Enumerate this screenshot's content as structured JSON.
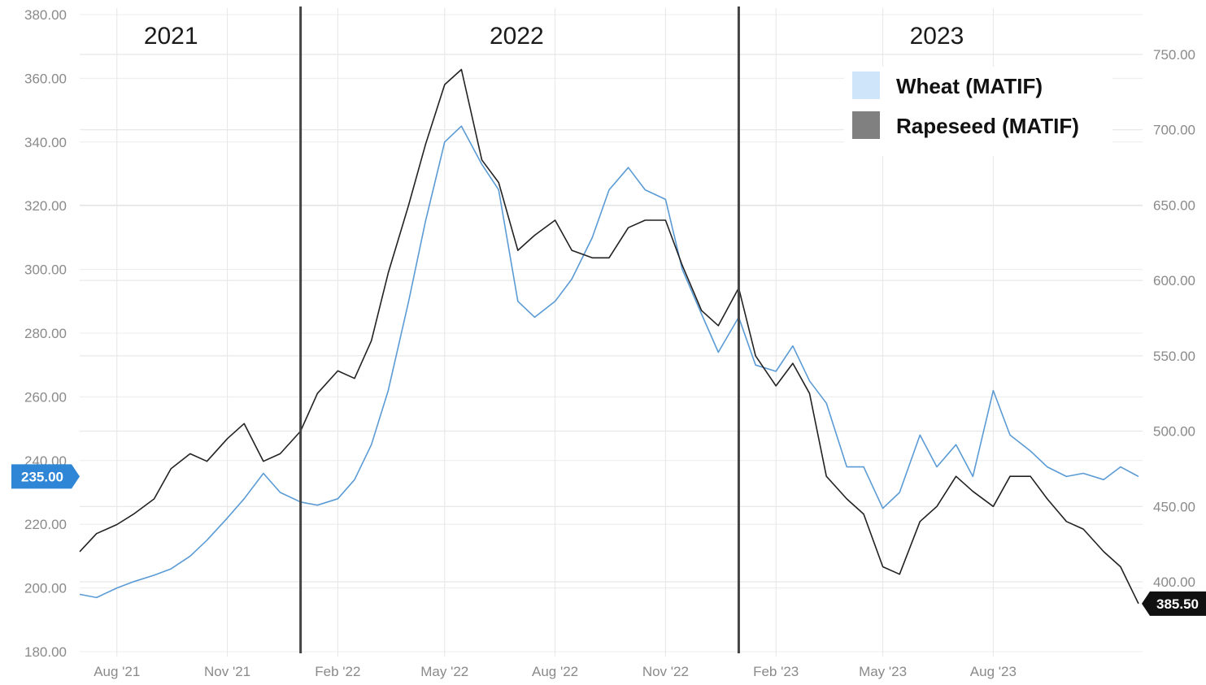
{
  "chart_data": {
    "type": "line",
    "title": "",
    "xlabel": "",
    "ylabel_left": "",
    "ylabel_right": "",
    "x_range": [
      "2021-07-01",
      "2023-11-30"
    ],
    "ylim_left": [
      180,
      380
    ],
    "ylim_right": [
      385,
      765
    ],
    "yticks_left": [
      "380.00",
      "360.00",
      "340.00",
      "320.00",
      "300.00",
      "280.00",
      "260.00",
      "240.00",
      "220.00",
      "200.00",
      "180.00"
    ],
    "yticks_right": [
      "750.00",
      "700.00",
      "650.00",
      "600.00",
      "550.00",
      "500.00",
      "450.00",
      "400.00"
    ],
    "xticks": [
      {
        "date": "2021-08-01",
        "label": "Aug '21"
      },
      {
        "date": "2021-11-01",
        "label": "Nov '21"
      },
      {
        "date": "2022-02-01",
        "label": "Feb '22"
      },
      {
        "date": "2022-05-01",
        "label": "May '22"
      },
      {
        "date": "2022-08-01",
        "label": "Aug '22"
      },
      {
        "date": "2022-11-01",
        "label": "Nov '22"
      },
      {
        "date": "2023-02-01",
        "label": "Feb '23"
      },
      {
        "date": "2023-05-01",
        "label": "May '23"
      },
      {
        "date": "2023-08-01",
        "label": "Aug '23"
      }
    ],
    "year_dividers": [
      "2022-01-01",
      "2023-01-01"
    ],
    "year_labels": [
      {
        "date": "2021-09-15",
        "label": "2021"
      },
      {
        "date": "2022-06-30",
        "label": "2022"
      },
      {
        "date": "2023-06-15",
        "label": "2023"
      }
    ],
    "grid": true,
    "legend_position": "top-right",
    "series": [
      {
        "name": "Wheat (MATIF)",
        "axis": "left",
        "color": "#5b9bd5",
        "legend_color": "#cfe6fa",
        "last_value_label": "235.00",
        "points": [
          [
            "2021-07-01",
            198
          ],
          [
            "2021-07-15",
            197
          ],
          [
            "2021-08-01",
            200
          ],
          [
            "2021-08-15",
            202
          ],
          [
            "2021-09-01",
            204
          ],
          [
            "2021-09-15",
            206
          ],
          [
            "2021-10-01",
            210
          ],
          [
            "2021-10-15",
            215
          ],
          [
            "2021-11-01",
            222
          ],
          [
            "2021-11-15",
            228
          ],
          [
            "2021-12-01",
            236
          ],
          [
            "2021-12-15",
            230
          ],
          [
            "2022-01-01",
            227
          ],
          [
            "2022-01-15",
            226
          ],
          [
            "2022-02-01",
            228
          ],
          [
            "2022-02-15",
            234
          ],
          [
            "2022-03-01",
            245
          ],
          [
            "2022-03-15",
            262
          ],
          [
            "2022-04-01",
            290
          ],
          [
            "2022-04-15",
            315
          ],
          [
            "2022-05-01",
            340
          ],
          [
            "2022-05-15",
            345
          ],
          [
            "2022-06-01",
            333
          ],
          [
            "2022-06-15",
            325
          ],
          [
            "2022-07-01",
            290
          ],
          [
            "2022-07-15",
            285
          ],
          [
            "2022-08-01",
            290
          ],
          [
            "2022-08-15",
            297
          ],
          [
            "2022-09-01",
            310
          ],
          [
            "2022-09-15",
            325
          ],
          [
            "2022-10-01",
            332
          ],
          [
            "2022-10-15",
            325
          ],
          [
            "2022-11-01",
            322
          ],
          [
            "2022-11-15",
            300
          ],
          [
            "2022-12-01",
            286
          ],
          [
            "2022-12-15",
            274
          ],
          [
            "2023-01-01",
            285
          ],
          [
            "2023-01-15",
            270
          ],
          [
            "2023-02-01",
            268
          ],
          [
            "2023-02-15",
            276
          ],
          [
            "2023-03-01",
            265
          ],
          [
            "2023-03-15",
            258
          ],
          [
            "2023-04-01",
            238
          ],
          [
            "2023-04-15",
            238
          ],
          [
            "2023-05-01",
            225
          ],
          [
            "2023-05-15",
            230
          ],
          [
            "2023-06-01",
            248
          ],
          [
            "2023-06-15",
            238
          ],
          [
            "2023-07-01",
            245
          ],
          [
            "2023-07-15",
            235
          ],
          [
            "2023-08-01",
            262
          ],
          [
            "2023-08-15",
            248
          ],
          [
            "2023-09-01",
            243
          ],
          [
            "2023-09-15",
            238
          ],
          [
            "2023-10-01",
            235
          ],
          [
            "2023-10-15",
            236
          ],
          [
            "2023-11-01",
            234
          ],
          [
            "2023-11-15",
            238
          ],
          [
            "2023-11-30",
            235
          ]
        ]
      },
      {
        "name": "Rapeseed (MATIF)",
        "axis": "right",
        "color": "#222222",
        "legend_color": "#808080",
        "last_value_label": "385.50",
        "points": [
          [
            "2021-07-01",
            420
          ],
          [
            "2021-07-15",
            432
          ],
          [
            "2021-08-01",
            438
          ],
          [
            "2021-08-15",
            445
          ],
          [
            "2021-09-01",
            455
          ],
          [
            "2021-09-15",
            475
          ],
          [
            "2021-10-01",
            485
          ],
          [
            "2021-10-15",
            480
          ],
          [
            "2021-11-01",
            495
          ],
          [
            "2021-11-15",
            505
          ],
          [
            "2021-12-01",
            480
          ],
          [
            "2021-12-15",
            485
          ],
          [
            "2022-01-01",
            500
          ],
          [
            "2022-01-15",
            525
          ],
          [
            "2022-02-01",
            540
          ],
          [
            "2022-02-15",
            535
          ],
          [
            "2022-03-01",
            560
          ],
          [
            "2022-03-15",
            605
          ],
          [
            "2022-04-01",
            650
          ],
          [
            "2022-04-15",
            690
          ],
          [
            "2022-05-01",
            730
          ],
          [
            "2022-05-15",
            740
          ],
          [
            "2022-06-01",
            680
          ],
          [
            "2022-06-15",
            665
          ],
          [
            "2022-07-01",
            620
          ],
          [
            "2022-07-15",
            630
          ],
          [
            "2022-08-01",
            640
          ],
          [
            "2022-08-15",
            620
          ],
          [
            "2022-09-01",
            615
          ],
          [
            "2022-09-15",
            615
          ],
          [
            "2022-10-01",
            635
          ],
          [
            "2022-10-15",
            640
          ],
          [
            "2022-11-01",
            640
          ],
          [
            "2022-11-15",
            610
          ],
          [
            "2022-12-01",
            580
          ],
          [
            "2022-12-15",
            570
          ],
          [
            "2023-01-01",
            595
          ],
          [
            "2023-01-15",
            550
          ],
          [
            "2023-02-01",
            530
          ],
          [
            "2023-02-15",
            545
          ],
          [
            "2023-03-01",
            525
          ],
          [
            "2023-03-15",
            470
          ],
          [
            "2023-04-01",
            455
          ],
          [
            "2023-04-15",
            445
          ],
          [
            "2023-05-01",
            410
          ],
          [
            "2023-05-15",
            405
          ],
          [
            "2023-06-01",
            440
          ],
          [
            "2023-06-15",
            450
          ],
          [
            "2023-07-01",
            470
          ],
          [
            "2023-07-15",
            460
          ],
          [
            "2023-08-01",
            450
          ],
          [
            "2023-08-15",
            470
          ],
          [
            "2023-09-01",
            470
          ],
          [
            "2023-09-15",
            455
          ],
          [
            "2023-10-01",
            440
          ],
          [
            "2023-10-15",
            435
          ],
          [
            "2023-11-01",
            420
          ],
          [
            "2023-11-15",
            410
          ],
          [
            "2023-11-30",
            385.5
          ]
        ]
      }
    ]
  }
}
